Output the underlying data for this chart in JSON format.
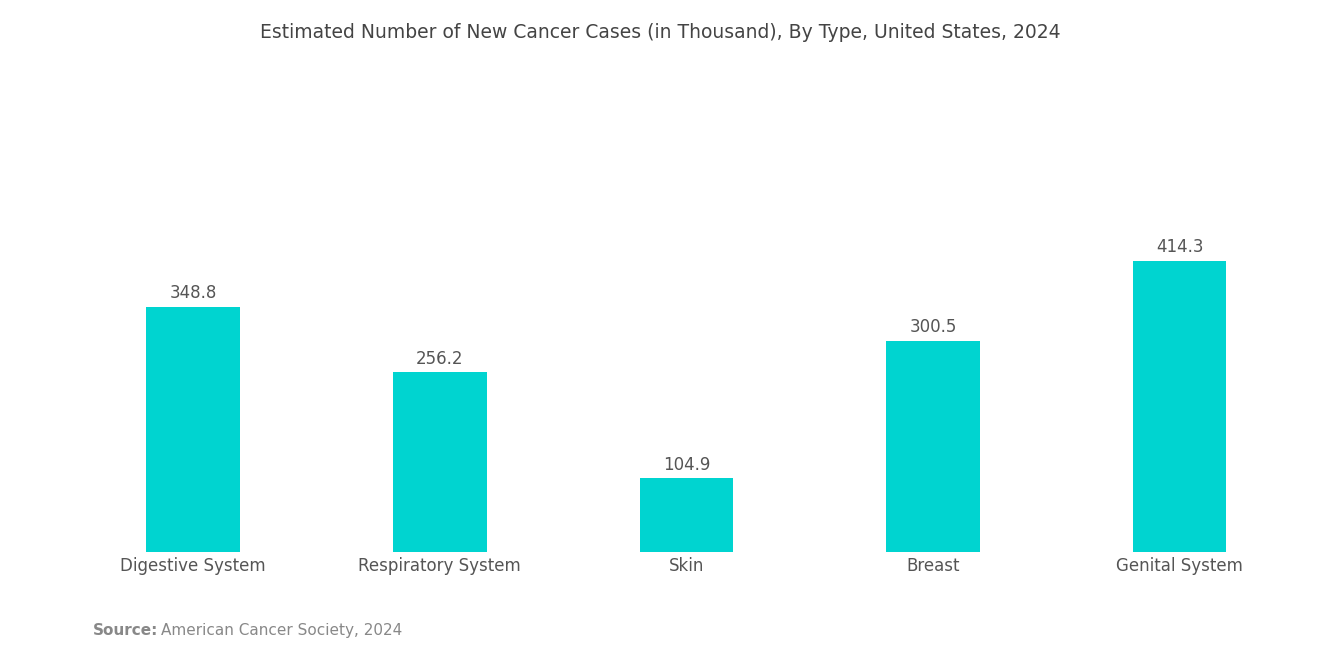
{
  "title": "Estimated Number of New Cancer Cases (in Thousand), By Type, United States, 2024",
  "categories": [
    "Digestive System",
    "Respiratory System",
    "Skin",
    "Breast",
    "Genital System"
  ],
  "values": [
    348.8,
    256.2,
    104.9,
    300.5,
    414.3
  ],
  "bar_color": "#00D4D0",
  "label_color": "#555555",
  "title_color": "#444444",
  "background_color": "#ffffff",
  "source_bold": "Source:",
  "source_text": "American Cancer Society, 2024",
  "source_color": "#888888",
  "title_fontsize": 13.5,
  "label_fontsize": 12,
  "value_fontsize": 12,
  "source_fontsize": 11,
  "ylim": [
    0,
    520
  ],
  "bar_width": 0.38
}
